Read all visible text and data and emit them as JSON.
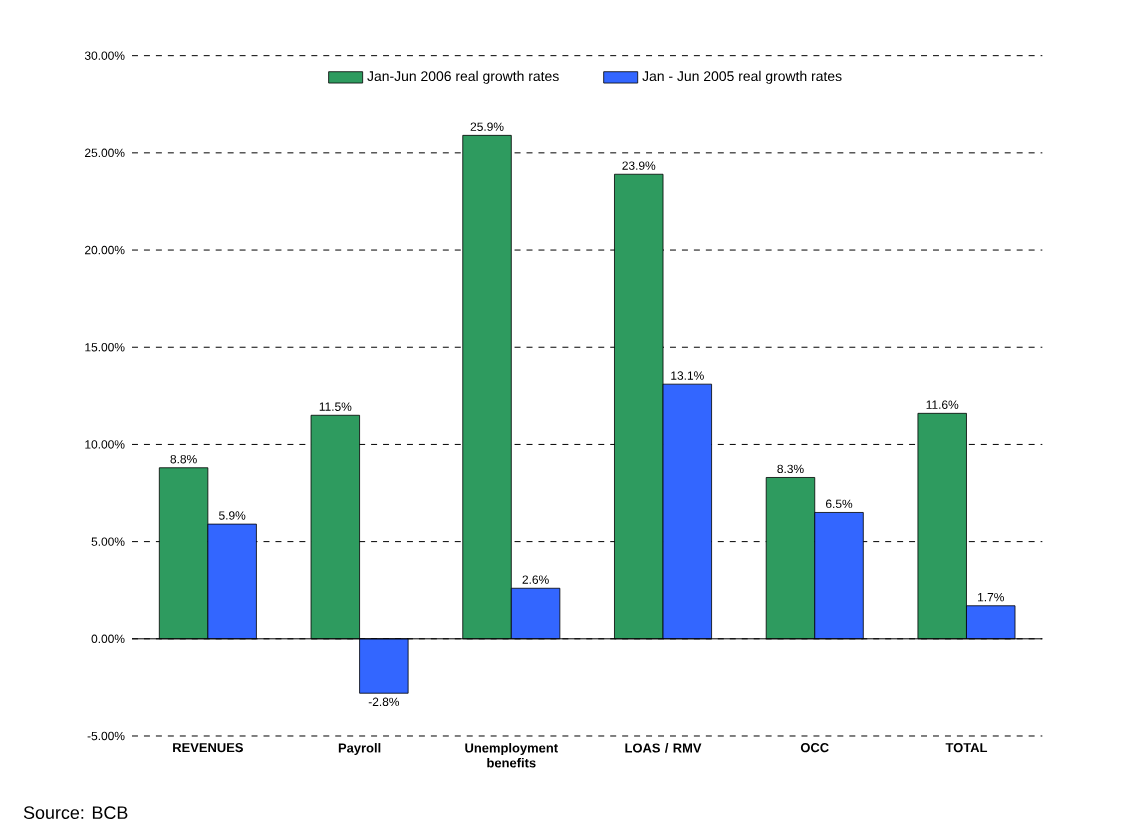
{
  "chart_data": {
    "type": "bar",
    "categories": [
      "REVENUES",
      "Payroll",
      "Unemployment benefits",
      "LOAS / RMV",
      "OCC",
      "TOTAL"
    ],
    "series": [
      {
        "name": "Jan-Jun 2006  real growth rates",
        "color": "#2e9b5f",
        "values": [
          8.8,
          11.5,
          25.9,
          23.9,
          8.3,
          11.6
        ],
        "value_labels": [
          "8.8%",
          "11.5%",
          "25.9%",
          "23.9%",
          "8.3%",
          "11.6%"
        ]
      },
      {
        "name": "Jan - Jun 2005 real growth rates",
        "color": "#3366ff",
        "values": [
          5.9,
          -2.8,
          2.6,
          13.1,
          6.5,
          1.7
        ],
        "value_labels": [
          "5.9%",
          "-2.8%",
          "2.6%",
          "13.1%",
          "6.5%",
          "1.7%"
        ]
      }
    ],
    "ylim": [
      -5,
      30
    ],
    "yticks": [
      {
        "value": -5,
        "label": "-5.00%"
      },
      {
        "value": 0,
        "label": "0.00%"
      },
      {
        "value": 5,
        "label": "5.00%"
      },
      {
        "value": 10,
        "label": "10.00%"
      },
      {
        "value": 15,
        "label": "15.00%"
      },
      {
        "value": 20,
        "label": "20.00%"
      },
      {
        "value": 25,
        "label": "25.00%"
      },
      {
        "value": 30,
        "label": "30.00%"
      }
    ],
    "grid": "y",
    "legend": "top",
    "annotations": [
      "Source: BCB"
    ]
  }
}
